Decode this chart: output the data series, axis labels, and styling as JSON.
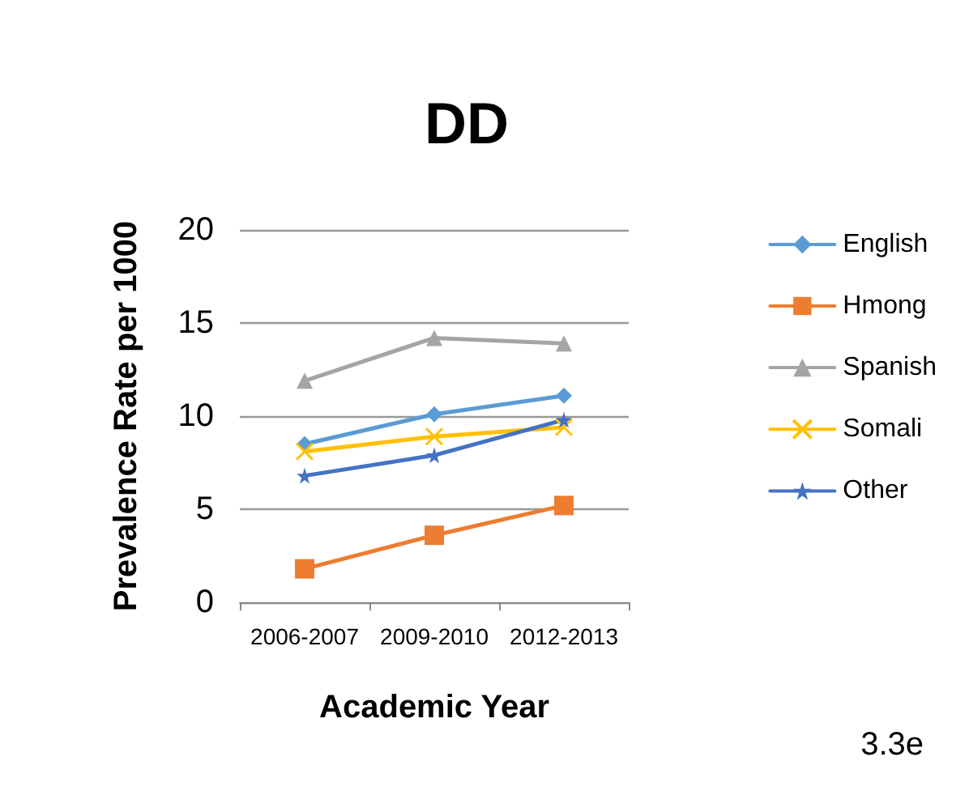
{
  "chart_data": {
    "type": "line",
    "title": "DD",
    "xlabel": "Academic Year",
    "ylabel": "Prevalence Rate per 1000",
    "categories": [
      "2006-2007",
      "2009-2010",
      "2012-2013"
    ],
    "series": [
      {
        "name": "English",
        "color": "#5b9bd5",
        "marker": "diamond",
        "values": [
          8.5,
          10.1,
          11.1
        ]
      },
      {
        "name": "Hmong",
        "color": "#ed7d31",
        "marker": "square",
        "values": [
          1.8,
          3.6,
          5.2
        ]
      },
      {
        "name": "Spanish",
        "color": "#a5a5a5",
        "marker": "triangle",
        "values": [
          11.9,
          14.2,
          13.9
        ]
      },
      {
        "name": "Somali",
        "color": "#ffc000",
        "marker": "cross",
        "values": [
          8.1,
          8.9,
          9.4
        ]
      },
      {
        "name": "Other",
        "color": "#4472c4",
        "marker": "star",
        "values": [
          6.8,
          7.9,
          9.8
        ]
      }
    ],
    "ylim": [
      0,
      20
    ],
    "yticks": [
      0,
      5,
      10,
      15,
      20
    ],
    "grid": "y",
    "legend": "right",
    "annotations": [
      "3.3e"
    ]
  }
}
